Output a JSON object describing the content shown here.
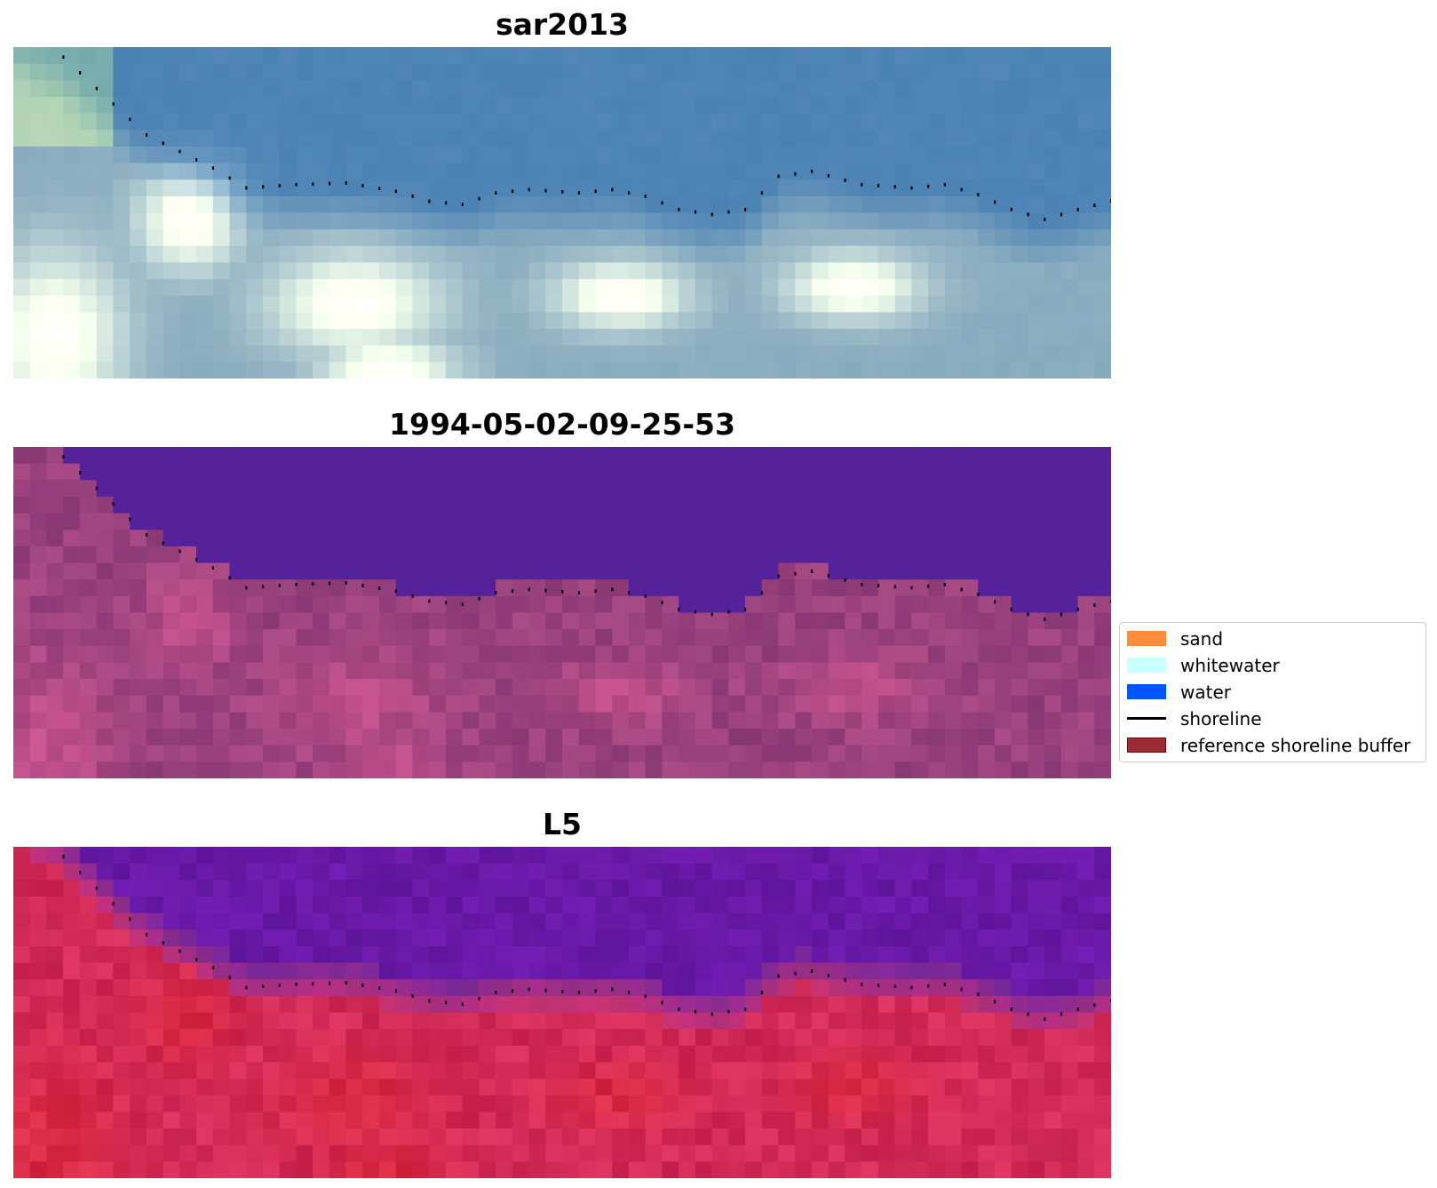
{
  "panels": [
    {
      "title": "sar2013",
      "palette": "rgb"
    },
    {
      "title": "1994-05-02-09-25-53",
      "palette": "class"
    },
    {
      "title": "L5",
      "palette": "ndwi"
    }
  ],
  "legend": {
    "items": [
      {
        "label": "sand",
        "type": "patch",
        "color": "#FF8C3C"
      },
      {
        "label": "whitewater",
        "type": "patch",
        "color": "#CCFFFF"
      },
      {
        "label": "water",
        "type": "patch",
        "color": "#0055FF"
      },
      {
        "label": "shoreline",
        "type": "line",
        "color": "#000000"
      },
      {
        "label": "reference shoreline buffer",
        "type": "patch",
        "color": "#9B2C33",
        "edge": "#6E0A12"
      }
    ]
  },
  "colors": {
    "shoreline_dots": "#000000",
    "water_mask": "#55229A"
  }
}
